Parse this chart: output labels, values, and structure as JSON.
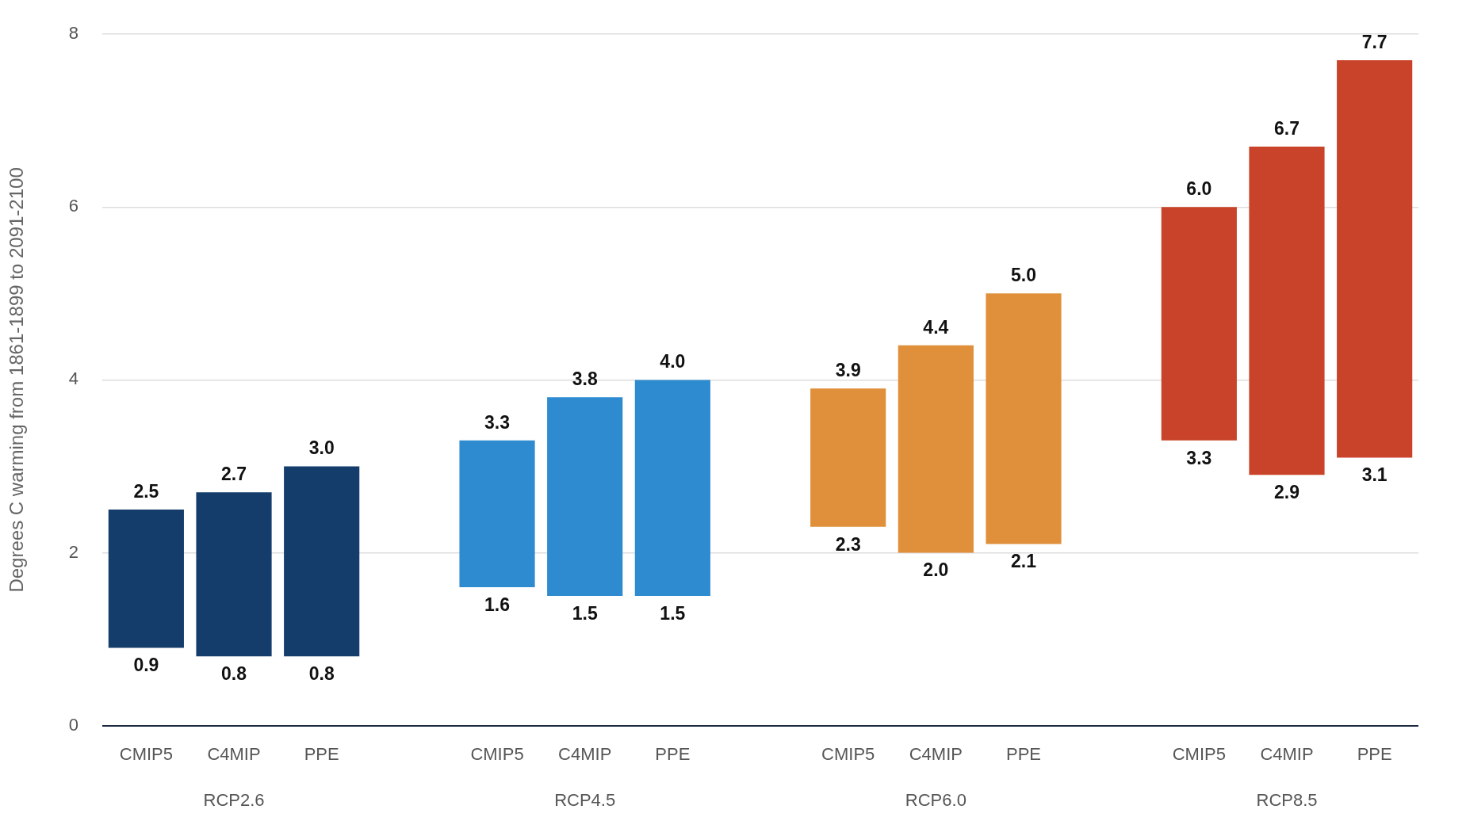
{
  "chart_data": {
    "type": "bar",
    "ylabel": "Degrees C warming from 1861-1899 to 2091-2100",
    "categories": [
      "CMIP5",
      "C4MIP",
      "PPE",
      null,
      "CMIP5",
      "C4MIP",
      "PPE",
      null,
      "CMIP5",
      "C4MIP",
      "PPE",
      null,
      "CMIP5",
      "C4MIP",
      "PPE"
    ],
    "colors": [
      "#143d6b",
      "#143d6b",
      "#143d6b",
      "#ffffff",
      "#2e8bd0",
      "#2e8bd0",
      "#2e8bd0",
      "#ffffff",
      "#e08f3a",
      "#e08f3a",
      "#e08f3a",
      "#ffffff",
      "#c9432a",
      "#c9432a",
      "#c9432a"
    ],
    "base": [
      0.9,
      0.8,
      0.8,
      null,
      1.6,
      1.5,
      1.5,
      null,
      2.3,
      2.0,
      2.1,
      null,
      3.3,
      2.9,
      3.1
    ],
    "values": [
      1.6,
      1.9,
      2.2,
      null,
      1.7,
      2.3,
      2.5,
      null,
      1.6,
      2.4,
      2.9,
      null,
      2.7,
      3.8,
      4.6
    ],
    "value_labels": [
      "2.5",
      "2.7",
      "3.0",
      null,
      "3.3",
      "3.8",
      "4.0",
      null,
      "3.9",
      "4.4",
      "5.0",
      null,
      "6.0",
      "6.7",
      "7.7"
    ],
    "annotations": [
      "RCP2.6",
      "RCP4.5",
      "RCP6.0",
      "RCP8.5",
      "0.9",
      "0.8",
      "0.8",
      "1.6",
      "1.5",
      "1.5",
      "2.3",
      "2.0",
      "2.1",
      "3.3",
      "2.9",
      "3.1"
    ],
    "ylim": [
      0,
      8
    ],
    "yticks": [
      0,
      2,
      4,
      6,
      8
    ],
    "grid": "y",
    "legend": false
  }
}
